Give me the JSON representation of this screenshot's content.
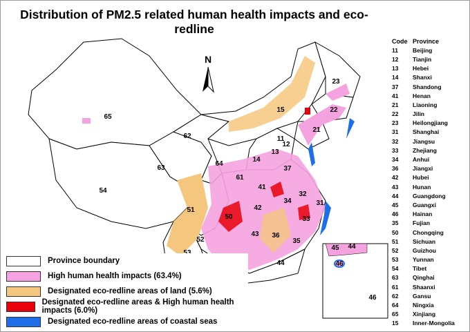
{
  "title": "Distribution of PM2.5 related human health impacts and eco-redline",
  "north_arrow": "N",
  "colors": {
    "boundary": "#000000",
    "high_health": "#f5a3e0",
    "eco_land": "#f5c77e",
    "eco_and_health": "#e8000b",
    "coastal": "#1e6ee8"
  },
  "legend": [
    {
      "label": "Province boundary",
      "color": "#ffffff"
    },
    {
      "label": "High human health impacts (63.4%)",
      "color": "#f5a3e0"
    },
    {
      "label": "Designated eco-redline areas of land (5.6%)",
      "color": "#f5c77e"
    },
    {
      "label": "Designated eco-redline areas & High human health impacts (6.0%)",
      "color": "#e8000b"
    },
    {
      "label": "Designated eco-redline areas of coastal seas",
      "color": "#1e6ee8"
    }
  ],
  "table": {
    "header_code": "Code",
    "header_province": "Province",
    "rows": [
      {
        "code": "11",
        "province": "Beijing"
      },
      {
        "code": "12",
        "province": "Tianjin"
      },
      {
        "code": "13",
        "province": "Hebei"
      },
      {
        "code": "14",
        "province": "Shanxi"
      },
      {
        "code": "37",
        "province": "Shandong"
      },
      {
        "code": "41",
        "province": "Henan"
      },
      {
        "code": "21",
        "province": "Liaoning"
      },
      {
        "code": "22",
        "province": "Jilin"
      },
      {
        "code": "23",
        "province": "Heilongjiang"
      },
      {
        "code": "31",
        "province": "Shanghai"
      },
      {
        "code": "32",
        "province": "Jiangsu"
      },
      {
        "code": "33",
        "province": "Zhejiang"
      },
      {
        "code": "34",
        "province": "Anhui"
      },
      {
        "code": "36",
        "province": "Jiangxi"
      },
      {
        "code": "42",
        "province": "Hubei"
      },
      {
        "code": "43",
        "province": "Hunan"
      },
      {
        "code": "44",
        "province": "Guangdong"
      },
      {
        "code": "45",
        "province": "Guangxi"
      },
      {
        "code": "46",
        "province": "Hainan"
      },
      {
        "code": "35",
        "province": "Fujian"
      },
      {
        "code": "50",
        "province": "Chongqing"
      },
      {
        "code": "51",
        "province": "Sichuan"
      },
      {
        "code": "52",
        "province": "Guizhou"
      },
      {
        "code": "53",
        "province": "Yunnan"
      },
      {
        "code": "54",
        "province": "Tibet"
      },
      {
        "code": "63",
        "province": "Qinghai"
      },
      {
        "code": "61",
        "province": "Shaanxi"
      },
      {
        "code": "62",
        "province": "Gansu"
      },
      {
        "code": "64",
        "province": "Ningxia"
      },
      {
        "code": "65",
        "province": "Xinjiang"
      },
      {
        "code": "15",
        "province": "Inner-Mongolia"
      }
    ]
  },
  "map_labels": [
    "65",
    "62",
    "63",
    "54",
    "51",
    "53",
    "52",
    "50",
    "45",
    "46",
    "44",
    "43",
    "42",
    "36",
    "35",
    "33",
    "34",
    "31",
    "32",
    "41",
    "37",
    "14",
    "13",
    "11",
    "12",
    "21",
    "22",
    "23",
    "15",
    "61",
    "64"
  ],
  "inset_labels": [
    "45",
    "44",
    "46",
    "46"
  ]
}
